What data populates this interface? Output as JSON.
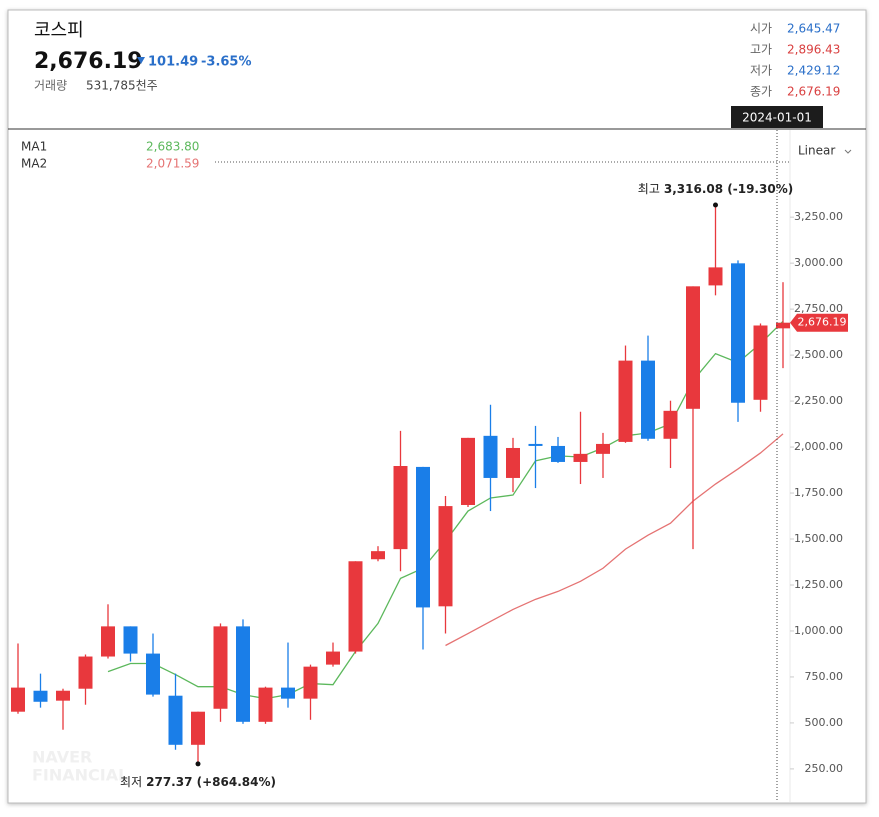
{
  "header": {
    "title": "코스피",
    "price": "2,676.19",
    "change": "101.49",
    "change_pct": "-3.65%",
    "volume_label": "거래량",
    "volume": "531,785천주",
    "ohlc": [
      {
        "label": "시가",
        "value": "2,645.47",
        "color": "#2a6fc9"
      },
      {
        "label": "고가",
        "value": "2,896.43",
        "color": "#d94040"
      },
      {
        "label": "저가",
        "value": "2,429.12",
        "color": "#2a6fc9"
      },
      {
        "label": "종가",
        "value": "2,676.19",
        "color": "#d94040"
      }
    ]
  },
  "chart_data": {
    "type": "candlestick",
    "up_color": "#e8383d",
    "down_color": "#1a7ee8",
    "open": [
      561,
      675,
      621,
      686,
      861,
      1025,
      877,
      648,
      381,
      577,
      1025,
      506,
      692,
      632,
      817,
      888,
      1390,
      1445,
      1892,
      1134,
      1685,
      2061,
      1832,
      2017,
      2006,
      1919,
      1963,
      2028,
      2470,
      2045,
      2208,
      2879,
      2999,
      2257,
      2645.47
    ],
    "high": [
      932,
      768,
      686,
      872,
      1145,
      1025,
      986,
      768,
      561,
      1041,
      1063,
      697,
      937,
      817,
      937,
      1379,
      1461,
      2088,
      1892,
      1734,
      2050,
      2230,
      2050,
      2115,
      2055,
      2192,
      2077,
      2552,
      2606,
      2252,
      2874,
      3316.08,
      3015,
      2672,
      2896.43
    ],
    "low": [
      550,
      583,
      463,
      599,
      850,
      834,
      643,
      354,
      277.37,
      506,
      495,
      495,
      583,
      517,
      806,
      877,
      1379,
      1325,
      899,
      986,
      1674,
      1652,
      1755,
      1777,
      1914,
      1799,
      1832,
      2023,
      2034,
      1886,
      1445,
      2825,
      2137,
      2192,
      2429.12
    ],
    "close": [
      692,
      615,
      675,
      861,
      1025,
      877,
      654,
      381,
      561,
      1025,
      506,
      692,
      632,
      806,
      888,
      1379,
      1434,
      1897,
      1128,
      1679,
      2050,
      1832,
      1995,
      2006,
      1919,
      1963,
      2017,
      2470,
      2045,
      2197,
      2874,
      2977,
      2241,
      2661,
      2676.19
    ],
    "series": [
      {
        "name": "MA1",
        "color": "#5cb85c",
        "last_label": "2,683.80",
        "values": [
          null,
          null,
          null,
          null,
          779,
          823,
          823,
          763,
          697,
          697,
          654,
          632,
          654,
          714,
          708,
          888,
          1041,
          1286,
          1341,
          1488,
          1652,
          1723,
          1739,
          1925,
          1952,
          1946,
          1995,
          2061,
          2077,
          2126,
          2361,
          2508,
          2459,
          2563,
          2683.8
        ]
      },
      {
        "name": "MA2",
        "color": "#e57373",
        "last_label": "2,071.59",
        "values": [
          null,
          null,
          null,
          null,
          null,
          null,
          null,
          null,
          null,
          null,
          null,
          null,
          null,
          null,
          null,
          null,
          null,
          null,
          null,
          921,
          986,
          1052,
          1117,
          1172,
          1215,
          1270,
          1341,
          1445,
          1521,
          1586,
          1706,
          1799,
          1881,
          1968,
          2071.59
        ]
      }
    ],
    "ylim": [
      70,
      3724
    ],
    "yticks": [
      {
        "value": 250,
        "label": "250.00"
      },
      {
        "value": 500,
        "label": "500.00"
      },
      {
        "value": 750,
        "label": "750.00"
      },
      {
        "value": 1000,
        "label": "1,000.00"
      },
      {
        "value": 1250,
        "label": "1,250.00"
      },
      {
        "value": 1500,
        "label": "1,500.00"
      },
      {
        "value": 1750,
        "label": "1,750.00"
      },
      {
        "value": 2000,
        "label": "2,000.00"
      },
      {
        "value": 2250,
        "label": "2,250.00"
      },
      {
        "value": 2500,
        "label": "2,500.00"
      },
      {
        "value": 2750,
        "label": "2,750.00"
      },
      {
        "value": 3000,
        "label": "3,000.00"
      },
      {
        "value": 3250,
        "label": "3,250.00"
      }
    ],
    "price_tag": {
      "value": 2676.19,
      "label": "2,676.19"
    },
    "crosshair_label": "2024-01-01",
    "scale_button": "Linear",
    "annotations": [
      {
        "label": "최고",
        "text": "3,316.08 (-19.30%)"
      },
      {
        "label": "최저",
        "text": "277.37 (+864.84%)"
      }
    ],
    "watermark": [
      "NAVER",
      "FINANCIAL"
    ]
  }
}
